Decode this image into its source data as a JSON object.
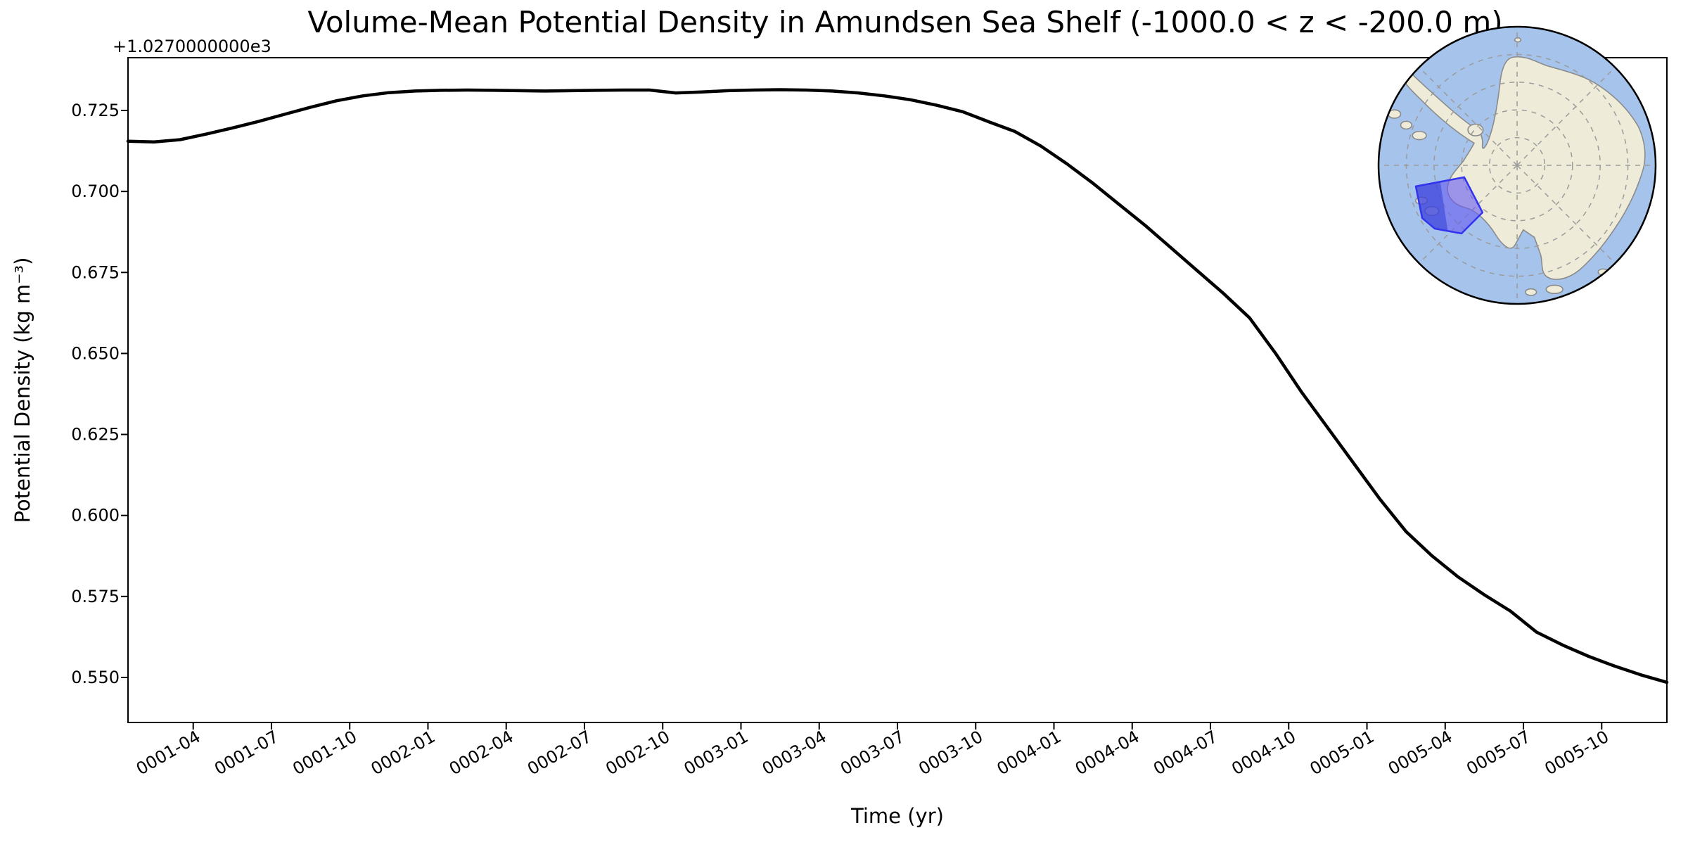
{
  "page": {
    "background": "#ffffff",
    "kind": "matplotlib-figure"
  },
  "chart_data": {
    "type": "line",
    "title": "Volume-Mean Potential Density in Amundsen Sea Shelf (-1000.0 < z < -200.0 m)",
    "xlabel": "Time (yr)",
    "ylabel": "Potential Density (kg m⁻³)",
    "y_offset_text": "+1.0270000000e3",
    "grid": false,
    "legend": "none",
    "line_color": "#000000",
    "line_width": 4.5,
    "xlim": [
      "0001-01-16",
      "0005-12-16"
    ],
    "ylim_offset": [
      0.536,
      0.741
    ],
    "y_ticks": [
      0.55,
      0.575,
      0.6,
      0.625,
      0.65,
      0.675,
      0.7,
      0.725
    ],
    "y_tick_labels": [
      "0.550",
      "0.575",
      "0.600",
      "0.625",
      "0.650",
      "0.675",
      "0.700",
      "0.725"
    ],
    "x_tick_labels": [
      "0001-04",
      "0001-07",
      "0001-10",
      "0002-01",
      "0002-04",
      "0002-07",
      "0002-10",
      "0003-01",
      "0003-04",
      "0003-07",
      "0003-10",
      "0004-01",
      "0004-04",
      "0004-07",
      "0004-10",
      "0005-01",
      "0005-04",
      "0005-07",
      "0005-10"
    ],
    "x": [
      "0001-01",
      "0001-02",
      "0001-03",
      "0001-04",
      "0001-05",
      "0001-06",
      "0001-07",
      "0001-08",
      "0001-09",
      "0001-10",
      "0001-11",
      "0001-12",
      "0002-01",
      "0002-02",
      "0002-03",
      "0002-04",
      "0002-05",
      "0002-06",
      "0002-07",
      "0002-08",
      "0002-09",
      "0002-10",
      "0002-11",
      "0002-12",
      "0003-01",
      "0003-02",
      "0003-03",
      "0003-04",
      "0003-05",
      "0003-06",
      "0003-07",
      "0003-08",
      "0003-09",
      "0003-10",
      "0003-11",
      "0003-12",
      "0004-01",
      "0004-02",
      "0004-03",
      "0004-04",
      "0004-05",
      "0004-06",
      "0004-07",
      "0004-08",
      "0004-09",
      "0004-10",
      "0004-11",
      "0004-12",
      "0005-01",
      "0005-02",
      "0005-03",
      "0005-04",
      "0005-05",
      "0005-06",
      "0005-07",
      "0005-08",
      "0005-09",
      "0005-10",
      "0005-11",
      "0005-12"
    ],
    "values_offset_from_1027": [
      0.7155,
      0.7153,
      0.716,
      0.7177,
      0.7196,
      0.7216,
      0.7238,
      0.726,
      0.728,
      0.7295,
      0.7305,
      0.731,
      0.7312,
      0.7313,
      0.7312,
      0.7311,
      0.731,
      0.7311,
      0.7312,
      0.7313,
      0.7313,
      0.7304,
      0.7307,
      0.7311,
      0.7313,
      0.7314,
      0.7313,
      0.731,
      0.7304,
      0.7295,
      0.7283,
      0.7266,
      0.7246,
      0.7215,
      0.7185,
      0.714,
      0.7085,
      0.7025,
      0.696,
      0.6895,
      0.6825,
      0.6755,
      0.6685,
      0.661,
      0.65,
      0.638,
      0.627,
      0.616,
      0.605,
      0.595,
      0.5875,
      0.581,
      0.5755,
      0.5705,
      0.564,
      0.56,
      0.5565,
      0.5535,
      0.5508,
      0.5485
    ]
  },
  "map_inset": {
    "region_label": "Amundsen Sea Shelf",
    "ocean_color": "#a5c3eb",
    "land_color": "#eeecd9",
    "coast_color": "#8a8a8a",
    "graticule_color": "#9b9b9b",
    "region_fill": "#685ef0",
    "region_dark_fill": "#2030d0",
    "region_edge": "#3333ee",
    "globe_edge": "#000000"
  }
}
